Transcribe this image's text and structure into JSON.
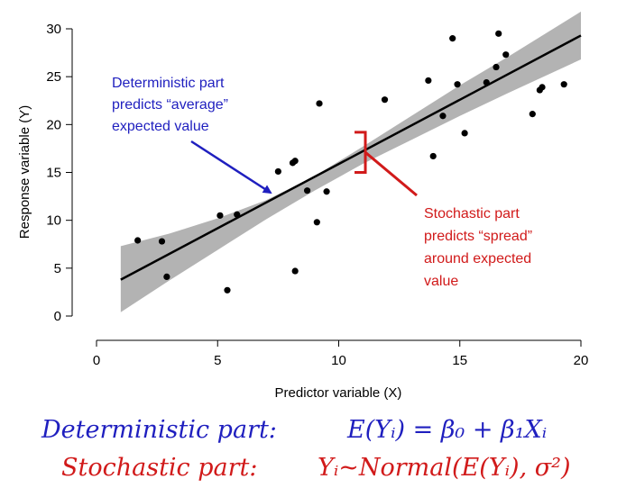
{
  "chart_data": {
    "type": "scatter",
    "xlabel": "Predictor variable (X)",
    "ylabel": "Response variable (Y)",
    "xlim": [
      0,
      20
    ],
    "ylim": [
      0,
      30
    ],
    "xticks": [
      0,
      5,
      10,
      15,
      20
    ],
    "yticks": [
      0,
      5,
      10,
      15,
      20,
      25,
      30
    ],
    "grid": false,
    "points": [
      {
        "x": 1.7,
        "y": 7.9
      },
      {
        "x": 2.7,
        "y": 7.8
      },
      {
        "x": 2.9,
        "y": 4.1
      },
      {
        "x": 5.1,
        "y": 10.5
      },
      {
        "x": 5.4,
        "y": 2.7
      },
      {
        "x": 5.8,
        "y": 10.6
      },
      {
        "x": 7.5,
        "y": 15.1
      },
      {
        "x": 8.1,
        "y": 16.0
      },
      {
        "x": 8.2,
        "y": 16.2
      },
      {
        "x": 8.2,
        "y": 4.7
      },
      {
        "x": 8.7,
        "y": 13.1
      },
      {
        "x": 9.1,
        "y": 9.8
      },
      {
        "x": 9.2,
        "y": 22.2
      },
      {
        "x": 9.5,
        "y": 13.0
      },
      {
        "x": 11.9,
        "y": 22.6
      },
      {
        "x": 13.7,
        "y": 24.6
      },
      {
        "x": 13.9,
        "y": 16.7
      },
      {
        "x": 14.3,
        "y": 20.9
      },
      {
        "x": 14.7,
        "y": 29.0
      },
      {
        "x": 14.9,
        "y": 24.2
      },
      {
        "x": 15.2,
        "y": 19.1
      },
      {
        "x": 16.1,
        "y": 24.4
      },
      {
        "x": 16.5,
        "y": 26.0
      },
      {
        "x": 16.6,
        "y": 29.5
      },
      {
        "x": 16.9,
        "y": 27.3
      },
      {
        "x": 18.0,
        "y": 21.1
      },
      {
        "x": 18.3,
        "y": 23.6
      },
      {
        "x": 18.4,
        "y": 23.9
      },
      {
        "x": 19.3,
        "y": 24.2
      }
    ],
    "regression_line": {
      "x": [
        1,
        20
      ],
      "y": [
        3.8,
        29.3
      ]
    },
    "confidence_band": {
      "x": [
        1,
        3,
        5,
        7,
        9,
        11,
        13,
        15,
        17,
        20
      ],
      "lower": [
        0.4,
        3.7,
        6.9,
        10.1,
        13.1,
        15.9,
        18.4,
        20.9,
        23.3,
        26.8
      ],
      "upper": [
        7.3,
        8.6,
        10.2,
        12.1,
        14.6,
        17.7,
        20.9,
        24.1,
        27.1,
        31.8
      ]
    },
    "annotations": [
      {
        "text_lines": [
          "Deterministic part",
          "predicts “average”",
          "expected value"
        ],
        "color": "#1f1fbf"
      },
      {
        "text_lines": [
          "Stochastic part",
          "predicts “spread”",
          "around expected",
          "value"
        ],
        "color": "#d11a1a"
      }
    ],
    "bracket": {
      "x": 11.1,
      "y_low": 15.0,
      "y_high": 19.2
    }
  },
  "formulas": {
    "deterministic_label": "Deterministic part:",
    "deterministic_eq": "E(Yᵢ) = β₀ + β₁Xᵢ",
    "stochastic_label": "Stochastic part:",
    "stochastic_eq": "Yᵢ~Normal(E(Yᵢ), σ²)"
  },
  "colors": {
    "band": "#b3b3b3",
    "line": "#000000",
    "point": "#000000",
    "blue": "#1f1fbf",
    "red": "#d11a1a"
  }
}
